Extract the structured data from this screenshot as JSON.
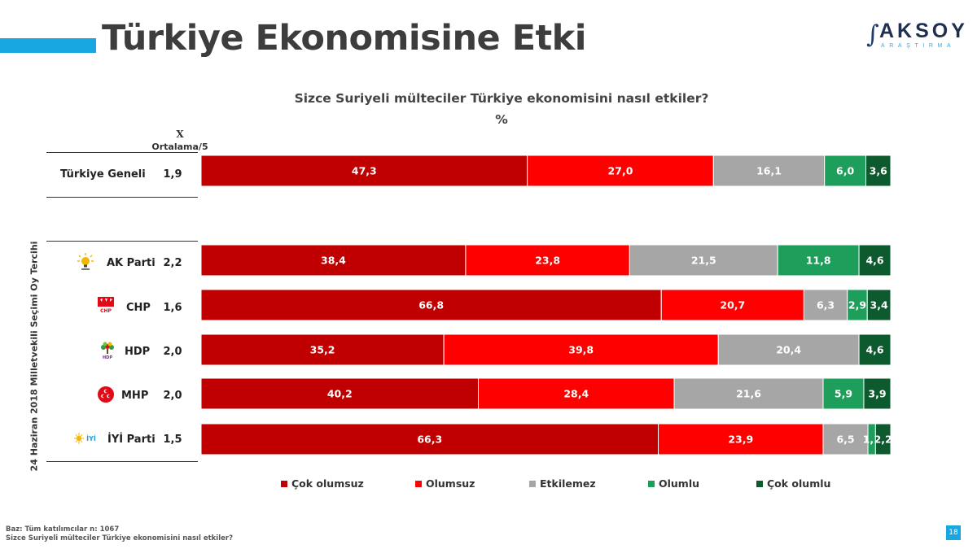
{
  "page": {
    "title": "Türkiye Ekonomisine Etki",
    "page_number": "18",
    "accent_color": "#18a7e0"
  },
  "logo": {
    "main": "AKSOY",
    "sub": "ARAŞTIRMA",
    "mark": "∫"
  },
  "question": {
    "line1": "Sizce Suriyeli mülteciler Türkiye ekonomisini nasıl etkiler?",
    "line2": "%"
  },
  "avg_header": {
    "symbol": "X",
    "label": "Ortalama/5"
  },
  "side_label": "24 Haziran 2018 Milletvekili Seçimi Oy Tercihi",
  "rows": [
    {
      "label": "Türkiye Geneli",
      "avg": "1,9",
      "icon": ""
    },
    {
      "label": "AK Parti",
      "avg": "2,2",
      "icon": "akp-lightbulb-icon"
    },
    {
      "label": "CHP",
      "avg": "1,6",
      "icon": "chp-arrows-icon"
    },
    {
      "label": "HDP",
      "avg": "2,0",
      "icon": "hdp-tree-icon"
    },
    {
      "label": "MHP",
      "avg": "2,0",
      "icon": "mhp-crescents-icon"
    },
    {
      "label": "İYİ Parti",
      "avg": "1,5",
      "icon": "iyi-sun-icon"
    }
  ],
  "legend": [
    "Çok olumsuz",
    "Olumsuz",
    "Etkilemez",
    "Olumlu",
    "Çok olumlu"
  ],
  "chart_data": {
    "type": "bar",
    "orientation": "horizontal",
    "stacked": true,
    "title": "Sizce Suriyeli mülteciler Türkiye ekonomisini nasıl etkiler?",
    "unit": "%",
    "categories": [
      "Türkiye Geneli",
      "AK Parti",
      "CHP",
      "HDP",
      "MHP",
      "İYİ Parti"
    ],
    "colors": [
      "#c00000",
      "#ff0000",
      "#a6a6a6",
      "#1e9e5b",
      "#0e5a2f"
    ],
    "series": [
      {
        "name": "Çok olumsuz",
        "values": [
          47.3,
          38.4,
          66.8,
          35.2,
          40.2,
          66.3
        ],
        "labels": [
          "47,3",
          "38,4",
          "66,8",
          "35,2",
          "40,2",
          "66,3"
        ]
      },
      {
        "name": "Olumsuz",
        "values": [
          27.0,
          23.8,
          20.7,
          39.8,
          28.4,
          23.9
        ],
        "labels": [
          "27,0",
          "23,8",
          "20,7",
          "39,8",
          "28,4",
          "23,9"
        ]
      },
      {
        "name": "Etkilemez",
        "values": [
          16.1,
          21.5,
          6.3,
          20.4,
          21.6,
          6.5
        ],
        "labels": [
          "16,1",
          "21,5",
          "6,3",
          "20,4",
          "21,6",
          "6,5"
        ]
      },
      {
        "name": "Olumlu",
        "values": [
          6.0,
          11.8,
          2.9,
          0,
          5.9,
          1.1
        ],
        "labels": [
          "6,0",
          "11,8",
          "2,9",
          "",
          "5,9",
          "1,1"
        ]
      },
      {
        "name": "Çok olumlu",
        "values": [
          3.6,
          4.6,
          3.4,
          4.6,
          3.9,
          2.2
        ],
        "labels": [
          "3,6",
          "4,6",
          "3,4",
          "4,6",
          "3,9",
          "2,2"
        ]
      }
    ],
    "legend_position": "bottom",
    "grid": false
  },
  "footer": {
    "base": "Baz: Tüm katılımcılar n: 1067",
    "question": "Sizce Suriyeli mülteciler Türkiye ekonomisini nasıl etkiler?"
  }
}
